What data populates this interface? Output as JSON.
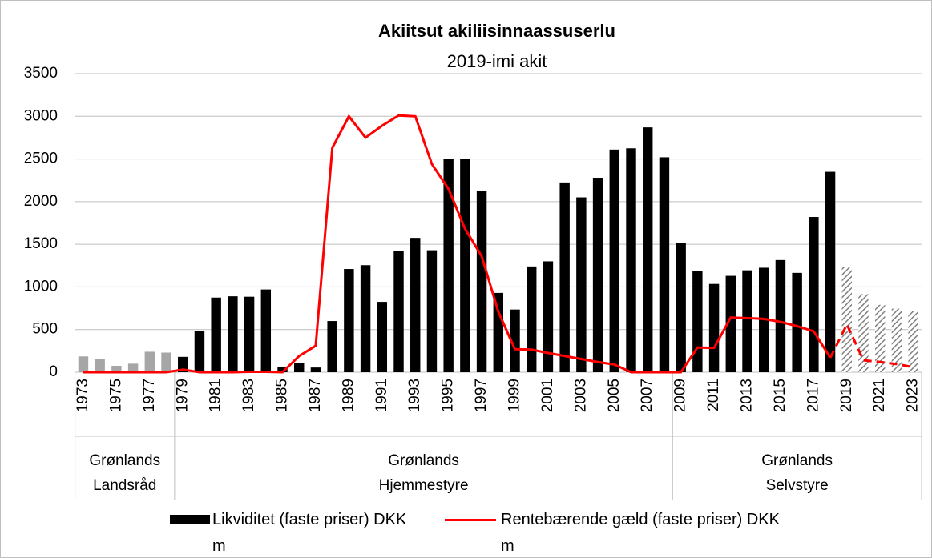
{
  "chart_data": {
    "type": "bar_line",
    "title": "Akiitsut akiliisinnaassuserlu",
    "subtitle": "2019-imi akit",
    "categories": [
      "1973",
      null,
      "1975",
      null,
      "1977",
      null,
      "1979",
      null,
      "1981",
      null,
      "1983",
      null,
      "1985",
      null,
      "1987",
      null,
      "1989",
      null,
      "1991",
      null,
      "1993",
      null,
      "1995",
      null,
      "1997",
      null,
      "1999",
      null,
      "2001",
      null,
      "2003",
      null,
      "2005",
      null,
      "2007",
      null,
      "2009",
      null,
      "2011",
      null,
      "2013",
      null,
      "2015",
      null,
      "2017",
      null,
      "2019",
      null,
      "2021",
      null,
      "2023"
    ],
    "groups": [
      {
        "label": [
          "Grønlands",
          "Landsråd"
        ],
        "count": 6,
        "bar_color": "#a6a6a6"
      },
      {
        "label": [
          "Grønlands",
          "Hjemmestyre"
        ],
        "count": 30,
        "bar_color": "#000000"
      },
      {
        "label": [
          "Grønlands",
          "Selvstyre"
        ],
        "count": 15,
        "bar_color": "#000000"
      }
    ],
    "forecast_start": "2019",
    "series": [
      {
        "name": "Likviditet (faste priser) DKK m",
        "type": "bar",
        "color": "#000000",
        "values": [
          185,
          155,
          75,
          100,
          240,
          230,
          180,
          480,
          875,
          890,
          885,
          970,
          60,
          110,
          55,
          600,
          1210,
          1255,
          825,
          1420,
          1575,
          1430,
          2500,
          2500,
          2130,
          930,
          735,
          1240,
          1300,
          2225,
          2050,
          2280,
          2610,
          2625,
          2870,
          2520,
          1520,
          1185,
          1035,
          1130,
          1195,
          1225,
          1315,
          1165,
          1820,
          2350,
          1230,
          915,
          790,
          745,
          715
        ]
      },
      {
        "name": "Rentebærende gæld (faste priser) DKK m",
        "type": "line",
        "color": "#ff0000",
        "values": [
          0,
          0,
          0,
          0,
          0,
          0,
          30,
          0,
          0,
          0,
          5,
          5,
          0,
          190,
          310,
          2630,
          3000,
          2750,
          2890,
          3010,
          3000,
          2440,
          2150,
          1680,
          1360,
          710,
          270,
          265,
          225,
          190,
          155,
          120,
          90,
          0,
          0,
          0,
          0,
          290,
          285,
          640,
          635,
          625,
          590,
          540,
          480,
          170,
          560,
          140,
          120,
          95,
          60
        ]
      }
    ],
    "ylim": [
      0,
      3500
    ],
    "yticks": [
      0,
      500,
      1000,
      1500,
      2000,
      2500,
      3000,
      3500
    ],
    "grid": true
  }
}
